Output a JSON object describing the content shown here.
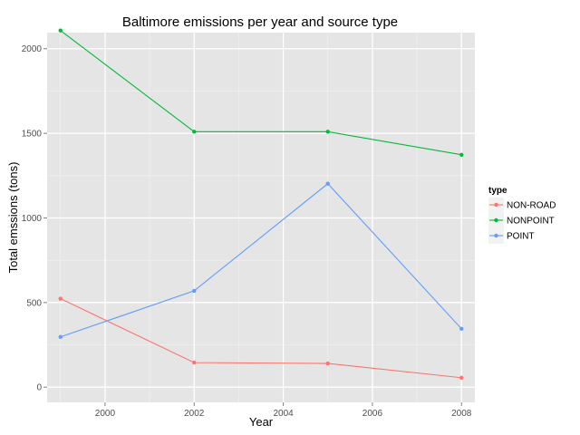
{
  "chart_data": {
    "type": "line",
    "title": "Baltimore emissions per year and source type",
    "xlabel": "Year",
    "ylabel": "Total emssions (tons)",
    "x": [
      1999,
      2002,
      2005,
      2008
    ],
    "xlim": [
      1998.7,
      2008.3
    ],
    "ylim": [
      -90,
      2095
    ],
    "xticks": [
      2000,
      2002,
      2004,
      2006,
      2008
    ],
    "yticks": [
      0,
      500,
      1000,
      1500,
      2000
    ],
    "grid": true,
    "legend": {
      "title": "type",
      "position": "right"
    },
    "series": [
      {
        "name": "NON-ROAD",
        "color": "#F8766D",
        "values": [
          522.9,
          145,
          140,
          55.8
        ]
      },
      {
        "name": "NONPOINT",
        "color": "#00BA38",
        "values": [
          2107.6,
          1509.5,
          1509.5,
          1373.2
        ]
      },
      {
        "name": "POINT",
        "color": "#619CFF",
        "values": [
          296.8,
          569.3,
          1202.5,
          344.98
        ]
      }
    ]
  }
}
